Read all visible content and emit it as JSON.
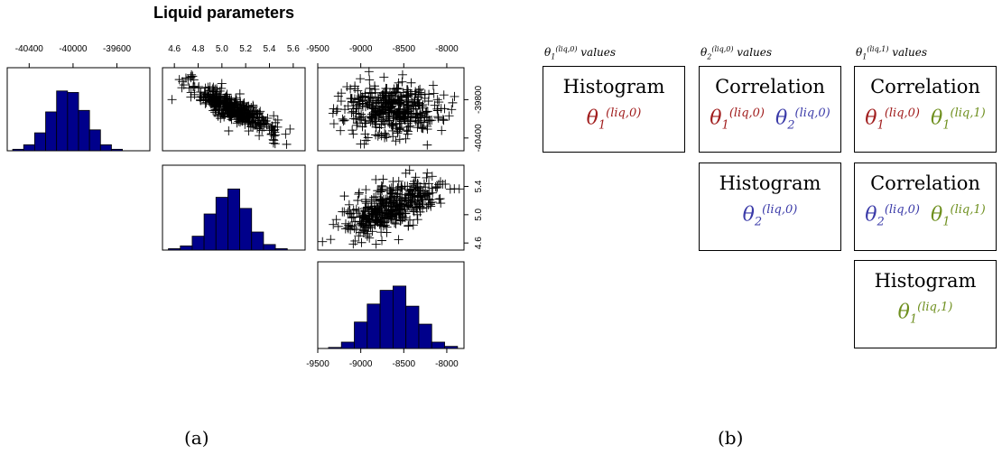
{
  "panel_a": {
    "title": "Liquid parameters",
    "caption": "(a)"
  },
  "panel_b": {
    "caption": "(b)",
    "columns": [
      {
        "sym": "θ",
        "sup": "(liq,0)",
        "sub": "1",
        "suffix": "values"
      },
      {
        "sym": "θ",
        "sup": "(liq,0)",
        "sub": "2",
        "suffix": "values"
      },
      {
        "sym": "θ",
        "sup": "(liq,1)",
        "sub": "1",
        "suffix": "values"
      }
    ],
    "cells": [
      {
        "id": "r1c1",
        "title": "Histogram",
        "symbols": [
          {
            "sup": "(liq,0)",
            "sub": "1",
            "color": "red"
          }
        ]
      },
      {
        "id": "r1c2",
        "title": "Correlation",
        "symbols": [
          {
            "sup": "(liq,0)",
            "sub": "1",
            "color": "red"
          },
          {
            "sup": "(liq,0)",
            "sub": "2",
            "color": "blue"
          }
        ]
      },
      {
        "id": "r1c3",
        "title": "Correlation",
        "symbols": [
          {
            "sup": "(liq,0)",
            "sub": "1",
            "color": "red"
          },
          {
            "sup": "(liq,1)",
            "sub": "1",
            "color": "green"
          }
        ]
      },
      {
        "id": "r2c2",
        "title": "Histogram",
        "symbols": [
          {
            "sup": "(liq,0)",
            "sub": "2",
            "color": "blue"
          }
        ]
      },
      {
        "id": "r2c3",
        "title": "Correlation",
        "symbols": [
          {
            "sup": "(liq,0)",
            "sub": "2",
            "color": "blue"
          },
          {
            "sup": "(liq,1)",
            "sub": "1",
            "color": "green"
          }
        ]
      },
      {
        "id": "r3c3",
        "title": "Histogram",
        "symbols": [
          {
            "sup": "(liq,1)",
            "sub": "1",
            "color": "green"
          }
        ]
      }
    ],
    "colors": {
      "red": "#a01c1c",
      "blue": "#3a3aa8",
      "green": "#6e8f1e"
    }
  },
  "chart_data": [
    {
      "type": "bar",
      "id": "hist-p1",
      "bar_color": "#00008b",
      "x_ticks": [
        "-40400",
        "-40000",
        "-39600"
      ],
      "x_range": [
        -40600,
        -39300
      ],
      "bins": [
        -40500,
        -40400,
        -40300,
        -40200,
        -40100,
        -40000,
        -39900,
        -39800,
        -39700,
        -39600
      ],
      "values": [
        1,
        4,
        12,
        26,
        40,
        39,
        27,
        14,
        4,
        1
      ]
    },
    {
      "type": "scatter",
      "id": "scatter-p1-p2",
      "marker": "+",
      "x_ticks": [
        "4.6",
        "4.8",
        "5.0",
        "5.2",
        "5.4",
        "5.6"
      ],
      "x_range": [
        4.5,
        5.7
      ],
      "y_range": [
        -40600,
        -39300
      ],
      "trend": "negative"
    },
    {
      "type": "scatter",
      "id": "scatter-p1-p3",
      "marker": "+",
      "x_ticks": [
        "-9500",
        "-9000",
        "-8500",
        "-8000"
      ],
      "x_range": [
        -9500,
        -7800
      ],
      "y_ticks": [
        "-40400",
        "-39800"
      ],
      "y_range": [
        -40600,
        -39300
      ],
      "trend": "none"
    },
    {
      "type": "bar",
      "id": "hist-p2",
      "bar_color": "#00008b",
      "bins": [
        4.6,
        4.7,
        4.8,
        4.9,
        5.0,
        5.1,
        5.2,
        5.3,
        5.4,
        5.5
      ],
      "values": [
        1,
        3,
        10,
        26,
        38,
        44,
        30,
        13,
        4,
        1
      ],
      "x_range": [
        4.5,
        5.7
      ]
    },
    {
      "type": "scatter",
      "id": "scatter-p2-p3",
      "marker": "+",
      "y_ticks": [
        "4.6",
        "5.0",
        "5.4"
      ],
      "y_range": [
        4.5,
        5.7
      ],
      "x_range": [
        -9500,
        -7800
      ],
      "trend": "positive"
    },
    {
      "type": "bar",
      "id": "hist-p3",
      "bar_color": "#00008b",
      "x_ticks": [
        "-9500",
        "-9000",
        "-8500",
        "-8000"
      ],
      "x_range": [
        -9500,
        -7800
      ],
      "bins": [
        -9300,
        -9150,
        -9000,
        -8850,
        -8700,
        -8550,
        -8400,
        -8250,
        -8100,
        -7950
      ],
      "values": [
        1,
        6,
        25,
        42,
        55,
        59,
        40,
        23,
        6,
        2
      ]
    }
  ]
}
